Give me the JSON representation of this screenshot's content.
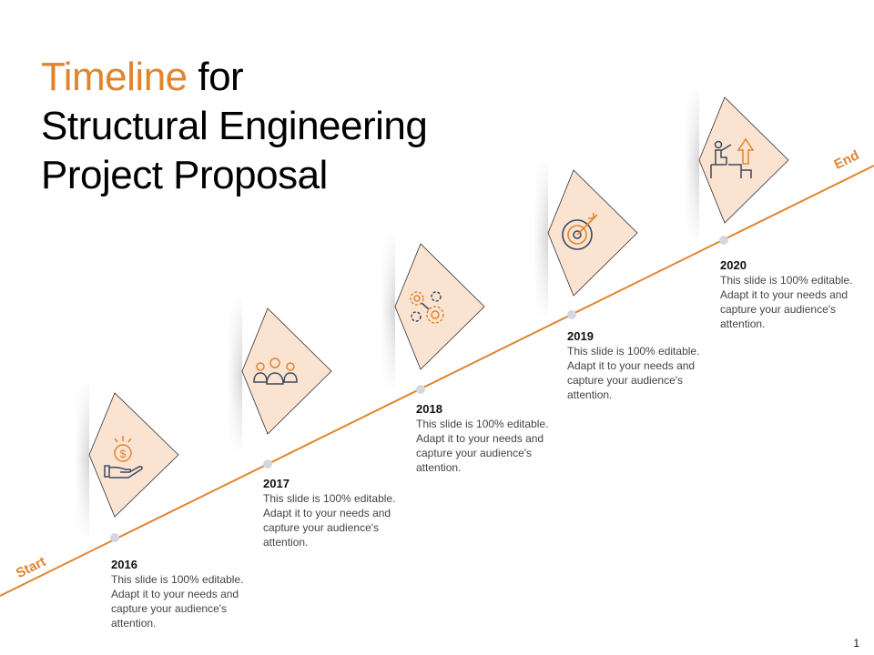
{
  "title": {
    "accent": "Timeline",
    "line1_rest": " for",
    "line2": "Structural Engineering",
    "line3": "Project Proposal"
  },
  "labels": {
    "start": "Start",
    "end": "End"
  },
  "milestones": [
    {
      "year": "2016",
      "text": "This slide is 100% editable.  Adapt it to your needs and capture your audience's attention.",
      "icon": "hand-coin-icon"
    },
    {
      "year": "2017",
      "text": "This slide is 100% editable.  Adapt it to your needs and capture your audience's attention.",
      "icon": "team-icon"
    },
    {
      "year": "2018",
      "text": "This slide is 100% editable.  Adapt it to your needs and capture your audience's attention.",
      "icon": "gears-icon"
    },
    {
      "year": "2019",
      "text": "This slide is 100% editable.  Adapt it to your needs and capture your audience's attention.",
      "icon": "target-icon"
    },
    {
      "year": "2020",
      "text": "This slide is 100% editable.  Adapt it to your needs and capture your audience's attention.",
      "icon": "growth-presenter-icon"
    }
  ],
  "page_number": "1",
  "colors": {
    "accent": "#e0852e",
    "diamond_fill": "#fbe3d2",
    "icon_stroke": "#3a4a5c",
    "dot": "#d4d8de"
  }
}
